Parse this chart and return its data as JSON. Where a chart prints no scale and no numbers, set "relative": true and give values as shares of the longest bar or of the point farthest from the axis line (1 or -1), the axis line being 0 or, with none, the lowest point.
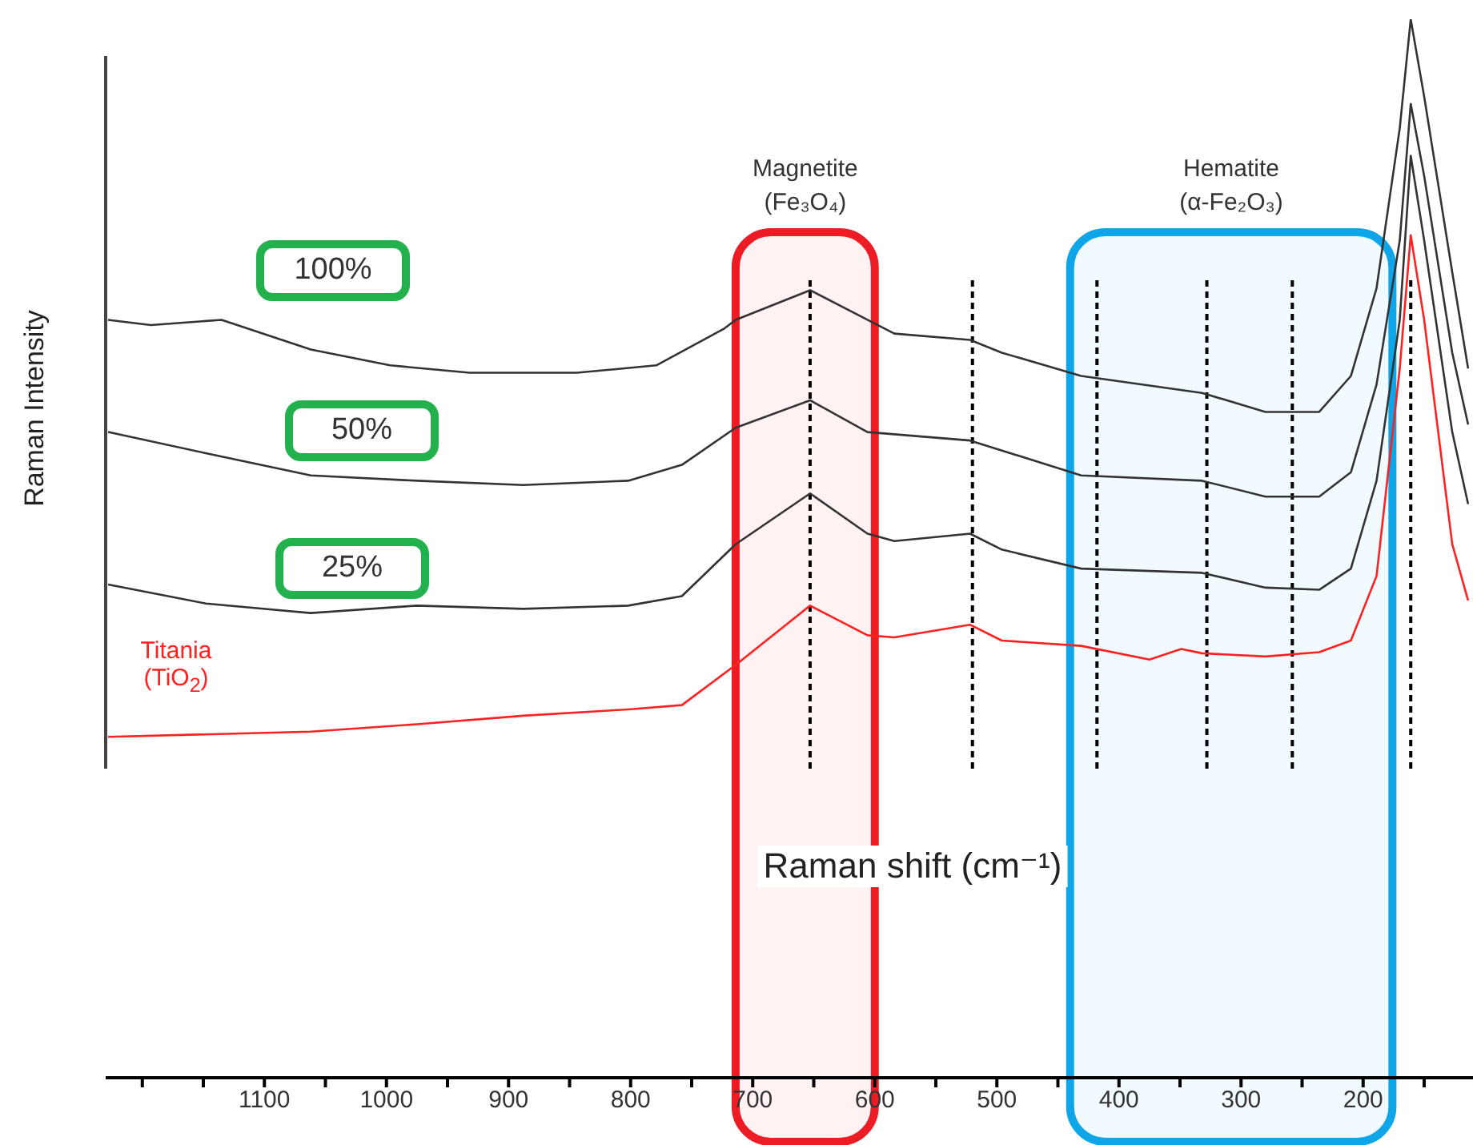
{
  "chart_data": {
    "type": "line",
    "relative": true,
    "xlabel": "Raman shift (cm⁻¹)",
    "ylabel": "Raman Intensity",
    "xlim": [
      1230,
      110
    ],
    "xticks": [
      {
        "value": 1200,
        "label": null
      },
      {
        "value": 1150,
        "label": null
      },
      1100,
      {
        "value": 1050,
        "label": null
      },
      1000,
      {
        "value": 950,
        "label": null
      },
      900,
      {
        "value": 850,
        "label": null
      },
      800,
      {
        "value": 750,
        "label": null
      },
      700,
      {
        "value": 650,
        "label": null
      },
      600,
      {
        "value": 550,
        "label": null
      },
      500,
      {
        "value": 450,
        "label": null
      },
      400,
      {
        "value": 350,
        "label": null
      },
      300,
      {
        "value": 250,
        "label": null
      },
      200,
      {
        "value": 150,
        "label": null
      }
    ],
    "grid": false,
    "legend": false,
    "marker": "none",
    "line_style": "solid",
    "series": [
      {
        "name": "100%",
        "color": "#333333",
        "x": [
          1228,
          1193,
          1135,
          1062,
          997,
          932,
          844,
          779,
          723,
          714,
          653,
          606,
          584,
          522,
          496,
          431,
          332,
          280,
          236,
          210,
          189,
          170,
          161,
          150,
          127,
          114
        ],
        "values": [
          0.716,
          0.711,
          0.716,
          0.688,
          0.673,
          0.666,
          0.666,
          0.673,
          0.708,
          0.716,
          0.744,
          0.716,
          0.703,
          0.697,
          0.685,
          0.663,
          0.647,
          0.629,
          0.629,
          0.663,
          0.746,
          0.897,
          1,
          0.927,
          0.761,
          0.67
        ]
      },
      {
        "name": "50%",
        "color": "#333333",
        "x": [
          1228,
          1148,
          1062,
          975,
          888,
          802,
          758,
          714,
          653,
          606,
          522,
          431,
          332,
          280,
          236,
          210,
          189,
          170,
          161,
          150,
          127,
          114
        ],
        "values": [
          0.61,
          0.59,
          0.569,
          0.564,
          0.56,
          0.564,
          0.579,
          0.614,
          0.64,
          0.61,
          0.602,
          0.569,
          0.564,
          0.549,
          0.549,
          0.572,
          0.655,
          0.791,
          0.92,
          0.852,
          0.685,
          0.617
        ]
      },
      {
        "name": "25%",
        "color": "#333333",
        "x": [
          1228,
          1148,
          1062,
          975,
          888,
          802,
          758,
          714,
          653,
          606,
          584,
          522,
          496,
          431,
          332,
          280,
          236,
          210,
          189,
          170,
          161,
          150,
          127,
          114
        ],
        "values": [
          0.466,
          0.448,
          0.439,
          0.446,
          0.443,
          0.446,
          0.455,
          0.504,
          0.552,
          0.514,
          0.507,
          0.514,
          0.499,
          0.481,
          0.477,
          0.463,
          0.461,
          0.481,
          0.564,
          0.716,
          0.871,
          0.791,
          0.61,
          0.542
        ]
      },
      {
        "name": "Titania (TiO$_{2}$)",
        "color": "#ff2020",
        "x": [
          1228,
          1062,
          975,
          888,
          802,
          758,
          714,
          653,
          606,
          584,
          522,
          496,
          431,
          375,
          349,
          332,
          280,
          236,
          210,
          189,
          170,
          161,
          150,
          127,
          114
        ],
        "values": [
          0.322,
          0.327,
          0.334,
          0.342,
          0.348,
          0.352,
          0.39,
          0.446,
          0.418,
          0.416,
          0.428,
          0.413,
          0.408,
          0.395,
          0.405,
          0.401,
          0.398,
          0.402,
          0.413,
          0.474,
          0.67,
          0.796,
          0.716,
          0.504,
          0.451
        ]
      }
    ],
    "ref_lines": [
      {
        "axis": "x",
        "value": 653,
        "color": "#000000",
        "line_style": "dashed"
      },
      {
        "axis": "x",
        "value": 520,
        "color": "#000000",
        "line_style": "dashed"
      },
      {
        "axis": "x",
        "value": 418,
        "color": "#000000",
        "line_style": "dashed"
      },
      {
        "axis": "x",
        "value": 328,
        "color": "#000000",
        "line_style": "dashed"
      },
      {
        "axis": "x",
        "value": 258,
        "color": "#000000",
        "line_style": "dashed"
      },
      {
        "axis": "x",
        "value": 161,
        "color": "#000000",
        "line_style": "dashed"
      }
    ],
    "bands": [
      {
        "axis": "x",
        "from": 714,
        "to": 600,
        "label": "Magnetite (Fe₃O₄)",
        "color": "#ed1c24"
      },
      {
        "axis": "x",
        "from": 440,
        "to": 176,
        "label": "Hematite (α-Fe₂O₃)",
        "color": "#0ea5e9"
      }
    ]
  }
}
